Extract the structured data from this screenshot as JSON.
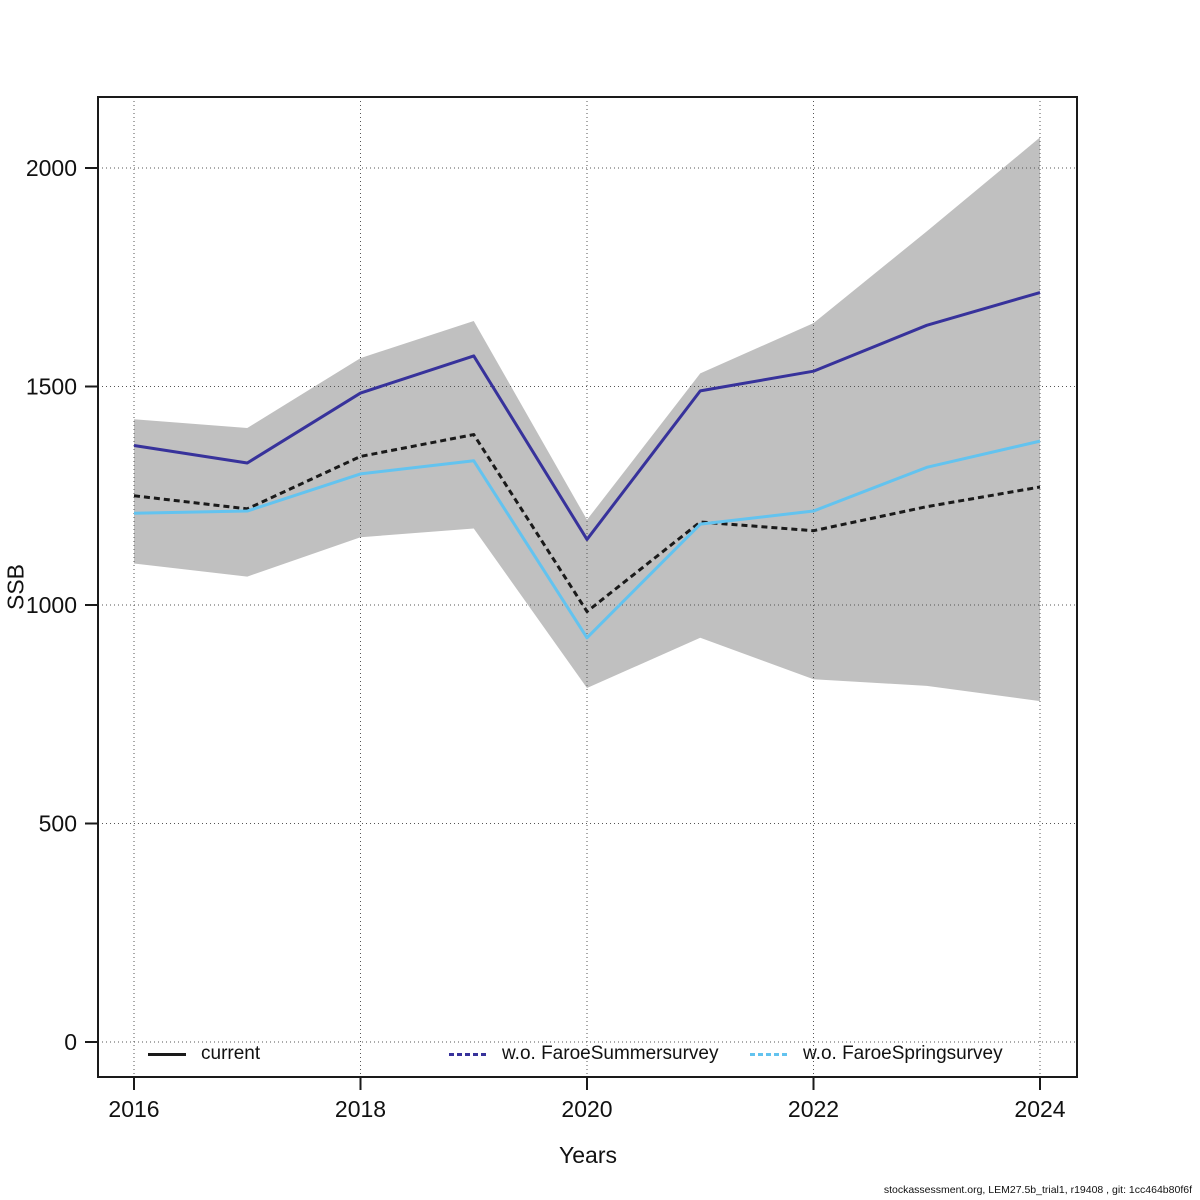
{
  "figure": {
    "background": "#ffffff",
    "footer_text": "stockassessment.org, LEM27.5b_trial1, r19408 , git: 1cc464b80f6f"
  },
  "chart_data": {
    "type": "line",
    "title": "",
    "xlabel": "Years",
    "ylabel": "SSB",
    "x": [
      2016,
      2017,
      2018,
      2019,
      2020,
      2021,
      2022,
      2023,
      2024
    ],
    "xticks": [
      2016,
      2018,
      2020,
      2022,
      2024
    ],
    "yticks": [
      0,
      500,
      1000,
      1500,
      2000
    ],
    "ylim": [
      -80,
      2160
    ],
    "grid": "dotted-both-axes",
    "legend_position": "bottom",
    "series": [
      {
        "name": "current",
        "color": "#1a1a1a",
        "line_style": "dashed",
        "legend_dash": false,
        "values": [
          1250,
          1220,
          1340,
          1390,
          985,
          1190,
          1170,
          1225,
          1270
        ]
      },
      {
        "name": "w.o. FaroeSummersurvey",
        "color": "#37329B",
        "line_style": "solid",
        "legend_dash": true,
        "values": [
          1365,
          1325,
          1485,
          1570,
          1150,
          1490,
          1535,
          1640,
          1715
        ]
      },
      {
        "name": "w.o. FaroeSpringsurvey",
        "color": "#63C3EF",
        "line_style": "solid",
        "legend_dash": true,
        "values": [
          1210,
          1215,
          1300,
          1330,
          925,
          1185,
          1215,
          1315,
          1375
        ]
      }
    ],
    "band": {
      "name": "confidence-band",
      "color": "#C0C0C0",
      "upper": [
        1425,
        1405,
        1565,
        1650,
        1195,
        1530,
        1645,
        1855,
        2070
      ],
      "lower": [
        1095,
        1065,
        1155,
        1175,
        810,
        925,
        830,
        815,
        780
      ]
    }
  }
}
